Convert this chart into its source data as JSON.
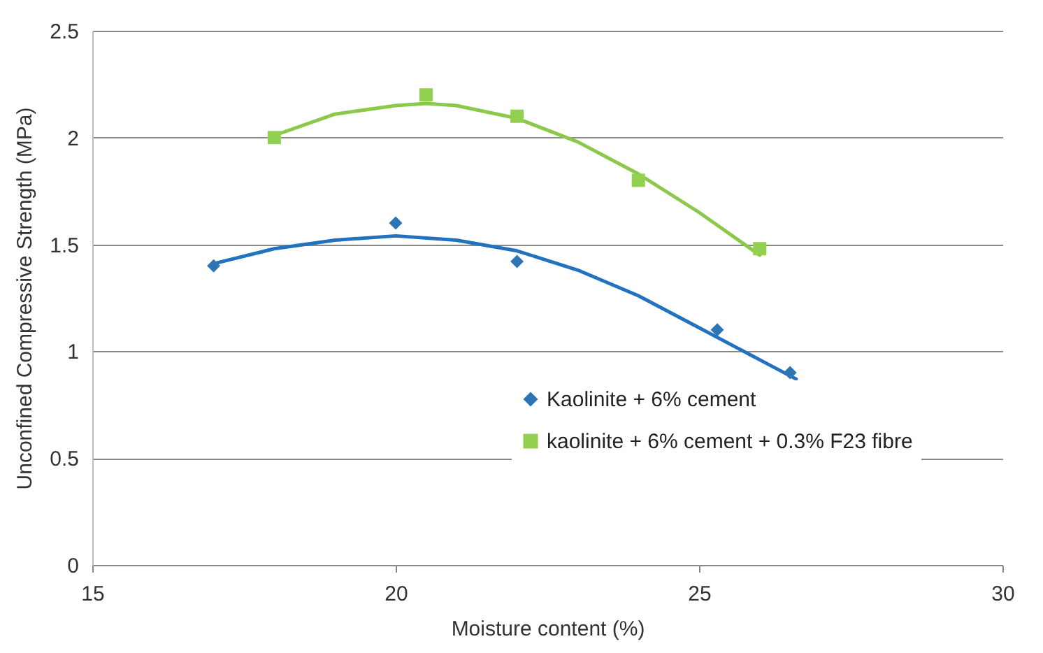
{
  "chart_data": {
    "type": "scatter",
    "xlabel": "Moisture content (%)",
    "ylabel": "Unconfined  Compressive  Strength (MPa)",
    "xlim": [
      15,
      30
    ],
    "xticks": [
      15,
      20,
      25,
      30
    ],
    "ylim": [
      0,
      2.5
    ],
    "yticks": [
      0,
      0.5,
      1,
      1.5,
      2,
      2.5
    ],
    "grid": "y",
    "legend": "bottom",
    "series": [
      {
        "name": "Kaolinite + 6% cement",
        "color": "#2e75b6",
        "marker": "diamond",
        "x": [
          17,
          20,
          22,
          25.3,
          26.5
        ],
        "values": [
          1.4,
          1.6,
          1.42,
          1.1,
          0.9
        ]
      },
      {
        "name": "kaolinite + 6% cement + 0.3% F23 fibre",
        "color": "#92d050",
        "marker": "square",
        "x": [
          18,
          20.5,
          22,
          24,
          26
        ],
        "values": [
          2.0,
          2.2,
          2.1,
          1.8,
          1.48
        ]
      },
      {
        "type": "line",
        "color": "#2272c0",
        "x": [
          17,
          18,
          19,
          20,
          21,
          22,
          23,
          24,
          25,
          26,
          26.6
        ],
        "values": [
          1.41,
          1.48,
          1.52,
          1.54,
          1.52,
          1.47,
          1.38,
          1.26,
          1.11,
          0.96,
          0.87
        ]
      },
      {
        "type": "line",
        "color": "#8cc84b",
        "x": [
          18,
          19,
          20,
          20.5,
          21,
          22,
          23,
          24,
          25,
          26
        ],
        "values": [
          2.01,
          2.11,
          2.15,
          2.16,
          2.15,
          2.09,
          1.98,
          1.83,
          1.65,
          1.45
        ]
      }
    ]
  }
}
